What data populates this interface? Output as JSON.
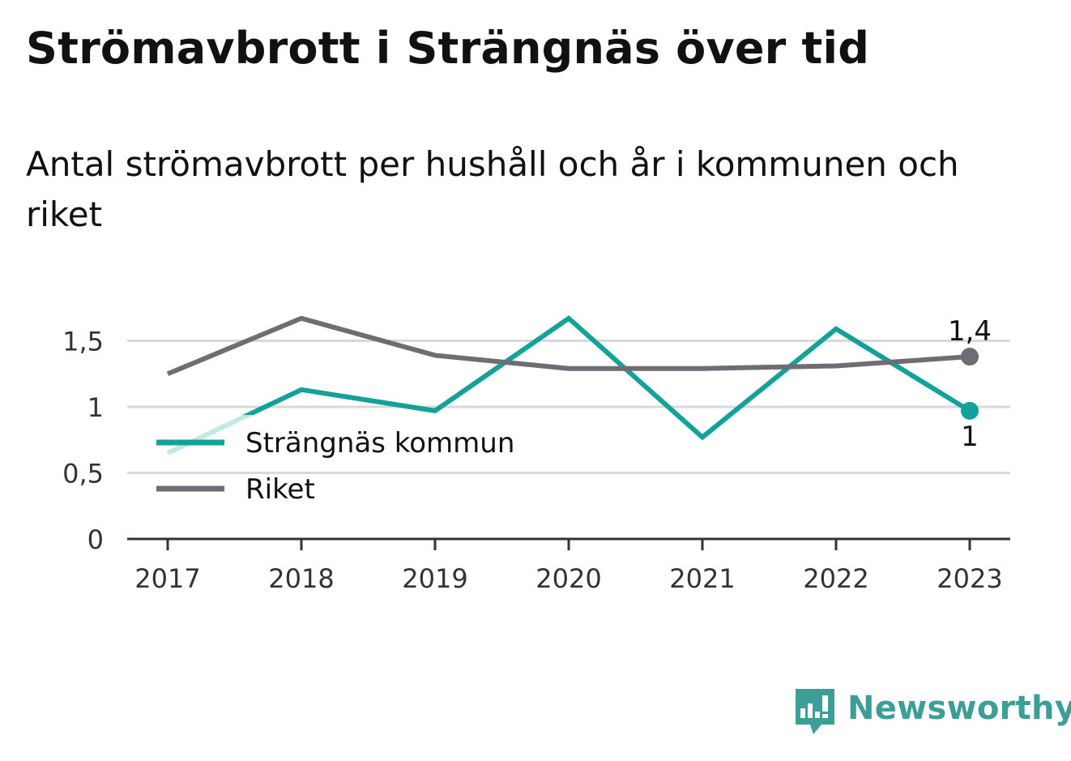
{
  "title": "Strömavbrott i Strängnäs över tid",
  "subtitle": "Antal strömavbrott per hushåll och år i kommunen och riket",
  "brand": {
    "name": "Newsworthy",
    "color": "#3d9e97",
    "icon": "bar-chart-speech-bubble-icon"
  },
  "colors": {
    "kommun": "#12a29a",
    "riket": "#6e6d74",
    "grid": "#d9d9d9",
    "axis": "#333333"
  },
  "chart_data": {
    "type": "line",
    "title": "Strömavbrott i Strängnäs över tid",
    "subtitle": "Antal strömavbrott per hushåll och år i kommunen och riket",
    "x": [
      "2017",
      "2018",
      "2019",
      "2020",
      "2021",
      "2022",
      "2023"
    ],
    "series": [
      {
        "name": "Strängnäs kommun",
        "color": "#12a29a",
        "values": [
          0.65,
          1.13,
          0.97,
          1.67,
          0.77,
          1.59,
          0.97
        ],
        "end_label": "1"
      },
      {
        "name": "Riket",
        "color": "#6e6d74",
        "values": [
          1.25,
          1.67,
          1.39,
          1.29,
          1.29,
          1.31,
          1.38
        ],
        "end_label": "1,4"
      }
    ],
    "y_ticks": [
      {
        "value": 0,
        "label": "0"
      },
      {
        "value": 0.5,
        "label": "0,5"
      },
      {
        "value": 1,
        "label": "1"
      },
      {
        "value": 1.5,
        "label": "1,5"
      }
    ],
    "ylim": [
      0,
      1.75
    ],
    "grid": true,
    "legend_position": "bottom-left"
  }
}
